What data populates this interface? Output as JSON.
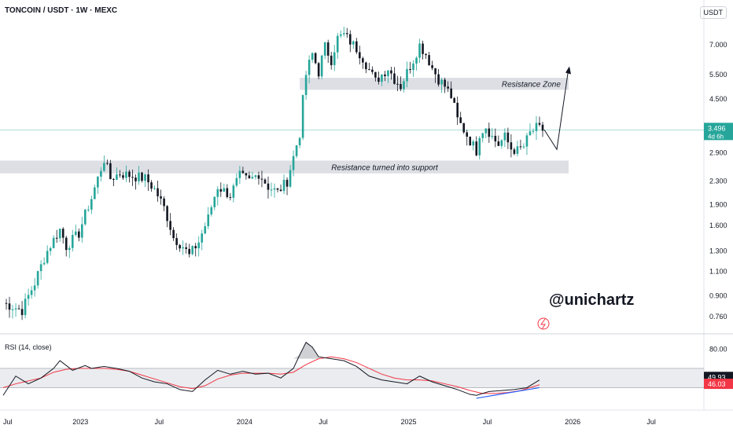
{
  "header": {
    "symbol": "TONCOIN / USDT · 1W · MEXC"
  },
  "currency": "USDT",
  "watermark": "@unichartz",
  "colors": {
    "up": "#26a69a",
    "down": "#131722",
    "rsi": "#131722",
    "ma": "#f23645",
    "support": "#2962ff",
    "price_line": "#26a69a"
  },
  "chart_data": [
    {
      "type": "candlestick",
      "title": "",
      "ylabel": "",
      "yscale": "log",
      "price_axis_ticks": [
        "7.000",
        "5.500",
        "4.500",
        "2.900",
        "2.300",
        "1.900",
        "1.600",
        "1.300",
        "1.100",
        "0.900",
        "0.760"
      ],
      "time_axis_ticks": [
        "Jul",
        "2023",
        "Jul",
        "2024",
        "Jul",
        "2025",
        "Jul",
        "2026",
        "Jul"
      ],
      "current_price": "3.496",
      "countdown": "4d 6h",
      "zones": [
        {
          "label": "Resistance Zone",
          "low": 4.85,
          "high": 5.35
        },
        {
          "label": "Resistance turned into support",
          "low": 2.45,
          "high": 2.72
        }
      ],
      "projection": {
        "from_price": 3.5,
        "dip_to": 2.98,
        "target": 5.8
      },
      "anchors": [
        [
          0,
          0.85
        ],
        [
          6,
          0.8
        ],
        [
          10,
          1.0
        ],
        [
          14,
          1.3
        ],
        [
          18,
          1.55
        ],
        [
          20,
          1.35
        ],
        [
          24,
          1.5
        ],
        [
          28,
          2.0
        ],
        [
          30,
          2.35
        ],
        [
          32,
          2.75
        ],
        [
          34,
          2.35
        ],
        [
          37,
          2.45
        ],
        [
          41,
          2.4
        ],
        [
          45,
          2.35
        ],
        [
          48,
          2.15
        ],
        [
          51,
          1.85
        ],
        [
          54,
          1.45
        ],
        [
          57,
          1.35
        ],
        [
          59,
          1.25
        ],
        [
          62,
          1.4
        ],
        [
          65,
          1.7
        ],
        [
          68,
          2.2
        ],
        [
          72,
          2.05
        ],
        [
          75,
          2.4
        ],
        [
          78,
          2.3
        ],
        [
          81,
          2.45
        ],
        [
          84,
          2.2
        ],
        [
          87,
          2.1
        ],
        [
          90,
          2.3
        ],
        [
          92,
          2.8
        ],
        [
          94,
          3.4
        ],
        [
          96,
          5.5
        ],
        [
          98,
          6.5
        ],
        [
          100,
          5.6
        ],
        [
          102,
          6.9
        ],
        [
          104,
          6.2
        ],
        [
          106,
          7.4
        ],
        [
          108,
          7.6
        ],
        [
          110,
          7.2
        ],
        [
          112,
          6.8
        ],
        [
          114,
          6.3
        ],
        [
          116,
          5.7
        ],
        [
          118,
          5.2
        ],
        [
          120,
          5.5
        ],
        [
          122,
          5.8
        ],
        [
          124,
          5.3
        ],
        [
          126,
          5.0
        ],
        [
          128,
          5.6
        ],
        [
          130,
          6.2
        ],
        [
          132,
          7.0
        ],
        [
          134,
          6.5
        ],
        [
          136,
          5.8
        ],
        [
          138,
          5.3
        ],
        [
          140,
          5.0
        ],
        [
          142,
          4.6
        ],
        [
          144,
          3.8
        ],
        [
          146,
          3.5
        ],
        [
          148,
          3.2
        ],
        [
          150,
          2.95
        ],
        [
          151,
          3.4
        ],
        [
          153,
          3.6
        ],
        [
          155,
          3.3
        ],
        [
          157,
          3.1
        ],
        [
          159,
          3.3
        ],
        [
          161,
          3.0
        ],
        [
          163,
          2.95
        ],
        [
          165,
          3.05
        ],
        [
          167,
          3.4
        ],
        [
          169,
          3.55
        ],
        [
          171,
          3.5
        ]
      ]
    },
    {
      "type": "line",
      "title": "RSI (14, close)",
      "ylim": [
        25,
        90
      ],
      "axis_ticks": [
        "80.00"
      ],
      "rsi_value": "49.93",
      "ma_value": "46.03",
      "band": [
        40,
        60
      ],
      "rsi": [
        [
          0,
          32
        ],
        [
          4,
          52
        ],
        [
          8,
          44
        ],
        [
          12,
          50
        ],
        [
          16,
          60
        ],
        [
          18,
          68
        ],
        [
          22,
          58
        ],
        [
          26,
          63
        ],
        [
          28,
          60
        ],
        [
          32,
          62
        ],
        [
          36,
          60
        ],
        [
          40,
          57
        ],
        [
          44,
          50
        ],
        [
          48,
          46
        ],
        [
          52,
          44
        ],
        [
          56,
          38
        ],
        [
          60,
          36
        ],
        [
          64,
          48
        ],
        [
          68,
          58
        ],
        [
          72,
          54
        ],
        [
          76,
          57
        ],
        [
          80,
          54
        ],
        [
          84,
          55
        ],
        [
          88,
          50
        ],
        [
          92,
          60
        ],
        [
          94,
          74
        ],
        [
          96,
          87
        ],
        [
          98,
          82
        ],
        [
          100,
          72
        ],
        [
          104,
          70
        ],
        [
          108,
          68
        ],
        [
          112,
          62
        ],
        [
          116,
          52
        ],
        [
          120,
          48
        ],
        [
          124,
          46
        ],
        [
          128,
          44
        ],
        [
          132,
          52
        ],
        [
          136,
          46
        ],
        [
          140,
          42
        ],
        [
          144,
          38
        ],
        [
          148,
          33
        ],
        [
          150,
          32
        ],
        [
          154,
          36
        ],
        [
          158,
          37
        ],
        [
          162,
          38
        ],
        [
          166,
          40
        ],
        [
          170,
          48
        ]
      ],
      "ma": [
        [
          0,
          40
        ],
        [
          4,
          44
        ],
        [
          8,
          47
        ],
        [
          12,
          50
        ],
        [
          16,
          56
        ],
        [
          20,
          59
        ],
        [
          24,
          60
        ],
        [
          28,
          60
        ],
        [
          32,
          60
        ],
        [
          36,
          59
        ],
        [
          40,
          57
        ],
        [
          44,
          53
        ],
        [
          48,
          49
        ],
        [
          52,
          45
        ],
        [
          56,
          41
        ],
        [
          60,
          39
        ],
        [
          64,
          42
        ],
        [
          68,
          49
        ],
        [
          72,
          53
        ],
        [
          76,
          55
        ],
        [
          80,
          55
        ],
        [
          84,
          55
        ],
        [
          88,
          54
        ],
        [
          92,
          56
        ],
        [
          96,
          64
        ],
        [
          100,
          70
        ],
        [
          104,
          72
        ],
        [
          108,
          70
        ],
        [
          112,
          66
        ],
        [
          116,
          60
        ],
        [
          120,
          54
        ],
        [
          124,
          50
        ],
        [
          128,
          48
        ],
        [
          132,
          48
        ],
        [
          136,
          47
        ],
        [
          140,
          44
        ],
        [
          144,
          41
        ],
        [
          148,
          37
        ],
        [
          152,
          34
        ],
        [
          156,
          34
        ],
        [
          160,
          35
        ],
        [
          164,
          37
        ],
        [
          170,
          43
        ]
      ],
      "support_line": [
        [
          150,
          29
        ],
        [
          170,
          40
        ]
      ]
    }
  ]
}
